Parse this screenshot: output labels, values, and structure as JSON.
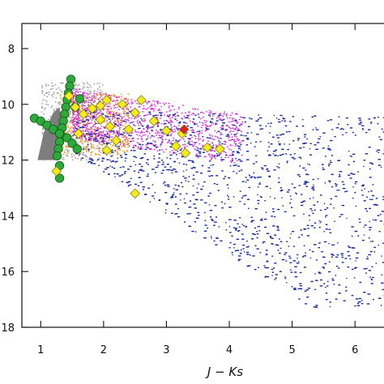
{
  "chart_data": {
    "type": "scatter",
    "title": "",
    "xlabel": "J − Ks",
    "ylabel": "",
    "xlim": [
      0.7,
      6.5
    ],
    "ylim": [
      18,
      7.1
    ],
    "y_inverted": true,
    "grid": false,
    "legend": "none",
    "x_ticks": [
      1,
      2,
      3,
      4,
      5,
      6
    ],
    "x_tick_labels": [
      "1",
      "2",
      "3",
      "4",
      "5",
      "6"
    ],
    "y_ticks": [
      8,
      10,
      12,
      14,
      16,
      18
    ],
    "y_tick_labels": [
      "8",
      "10",
      "12",
      "14",
      "16",
      "18"
    ],
    "colors": {
      "grey_region": "#7d7d7d",
      "orange": "#f0a030",
      "magenta": "#e020e0",
      "blue": "#1a2aa0",
      "yellow": "#f2ec1a",
      "green": "#2ea83a",
      "red": "#e02020",
      "grey_points": "#9a9a9a"
    },
    "series": [
      {
        "marker": "filled polygon",
        "color": "#7d7d7d",
        "points": [
          [
            0.95,
            12.0
          ],
          [
            1.25,
            12.0
          ],
          [
            1.35,
            10.9
          ],
          [
            1.3,
            10.1
          ],
          [
            1.2,
            10.3
          ],
          [
            1.05,
            11.0
          ]
        ]
      },
      {
        "marker": "circle",
        "color": "#2ea83a",
        "points": [
          [
            1.48,
            9.1
          ],
          [
            1.46,
            9.35
          ],
          [
            1.44,
            9.6
          ],
          [
            1.42,
            9.85
          ],
          [
            1.4,
            10.1
          ],
          [
            1.38,
            10.35
          ],
          [
            1.36,
            10.6
          ],
          [
            1.34,
            10.85
          ],
          [
            1.32,
            11.1
          ],
          [
            1.3,
            11.35
          ],
          [
            1.28,
            11.6
          ],
          [
            1.26,
            11.85
          ],
          [
            0.9,
            10.5
          ],
          [
            1.0,
            10.6
          ],
          [
            1.1,
            10.75
          ],
          [
            1.2,
            10.9
          ],
          [
            1.3,
            11.05
          ],
          [
            1.42,
            11.2
          ],
          [
            1.5,
            11.4
          ],
          [
            1.58,
            11.6
          ],
          [
            1.3,
            12.2
          ],
          [
            1.3,
            12.65
          ],
          [
            1.55,
            10.1
          ],
          [
            1.62,
            9.8
          ]
        ]
      },
      {
        "marker": "diamond",
        "color": "#f2ec1a",
        "points": [
          [
            1.45,
            9.7
          ],
          [
            1.55,
            10.1
          ],
          [
            1.68,
            10.35
          ],
          [
            1.82,
            10.15
          ],
          [
            1.95,
            10.05
          ],
          [
            2.05,
            9.85
          ],
          [
            2.3,
            10.0
          ],
          [
            2.5,
            10.3
          ],
          [
            2.1,
            10.8
          ],
          [
            2.4,
            10.9
          ],
          [
            2.8,
            10.6
          ],
          [
            3.0,
            10.95
          ],
          [
            3.25,
            11.05
          ],
          [
            3.15,
            11.5
          ],
          [
            3.3,
            11.75
          ],
          [
            3.65,
            11.55
          ],
          [
            3.85,
            11.6
          ],
          [
            2.5,
            13.2
          ],
          [
            1.25,
            12.4
          ],
          [
            1.6,
            11.05
          ],
          [
            2.2,
            11.3
          ],
          [
            2.05,
            11.65
          ],
          [
            1.95,
            10.55
          ],
          [
            2.6,
            9.85
          ]
        ]
      },
      {
        "marker": "diamond",
        "color": "#e02020",
        "points": [
          [
            3.28,
            10.9
          ]
        ]
      }
    ],
    "point_clouds": [
      {
        "color": "#9a9a9a",
        "x_range": [
          1.0,
          2.0
        ],
        "y_range": [
          9.2,
          12.0
        ]
      },
      {
        "color": "#f0a030",
        "x_range": [
          1.3,
          2.4
        ],
        "y_range": [
          9.6,
          11.8
        ]
      },
      {
        "color": "#e020e0",
        "x_range": [
          1.5,
          4.2
        ],
        "y_range": [
          9.4,
          12.8
        ]
      },
      {
        "color": "#1a2aa0",
        "x_range": [
          1.5,
          6.5
        ],
        "y_range": [
          9.6,
          17.3
        ]
      }
    ]
  }
}
